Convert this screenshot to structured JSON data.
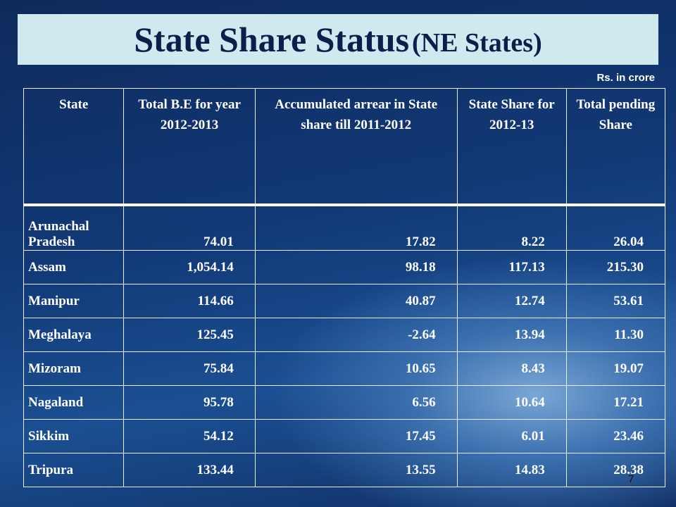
{
  "header": {
    "title": "State Share Status",
    "title_note": "(NE States)",
    "unit": "Rs. in crore"
  },
  "table": {
    "columns": [
      "State",
      "Total B.E for year 2012-2013",
      "Accumulated arrear in State share till 2011-2012",
      "State Share for  2012-13",
      "Total pending Share"
    ],
    "rows": [
      [
        "Arunachal Pradesh",
        "74.01",
        "17.82",
        "8.22",
        "26.04"
      ],
      [
        "Assam",
        "1,054.14",
        "98.18",
        "117.13",
        "215.30"
      ],
      [
        "Manipur",
        "114.66",
        "40.87",
        "12.74",
        "53.61"
      ],
      [
        "Meghalaya",
        "125.45",
        "-2.64",
        "13.94",
        "11.30"
      ],
      [
        "Mizoram",
        "75.84",
        "10.65",
        "8.43",
        "19.07"
      ],
      [
        "Nagaland",
        "95.78",
        "6.56",
        "10.64",
        "17.21"
      ],
      [
        "Sikkim",
        "54.12",
        "17.45",
        "6.01",
        "23.46"
      ],
      [
        "Tripura",
        "133.44",
        "13.55",
        "14.83",
        "28.38"
      ]
    ]
  },
  "footer": {
    "page_number": "7"
  }
}
